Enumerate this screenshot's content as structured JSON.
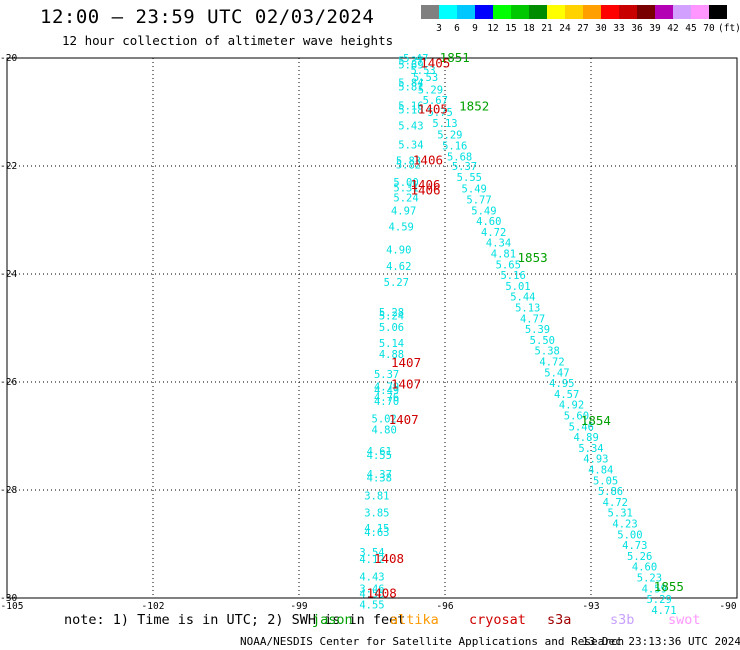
{
  "header": {
    "title": "12:00 — 23:59 UTC 02/03/2024",
    "subtitle": "12 hour collection of altimeter wave heights"
  },
  "colorbar": {
    "labels": [
      "3",
      "6",
      "9",
      "12",
      "15",
      "18",
      "21",
      "24",
      "27",
      "30",
      "33",
      "36",
      "39",
      "42",
      "45",
      "70"
    ],
    "colors": [
      "#808080",
      "#00ffff",
      "#00c8ff",
      "#0000ff",
      "#00ff00",
      "#00c800",
      "#008c00",
      "#ffff00",
      "#ffd200",
      "#ffa000",
      "#ff0000",
      "#c80000",
      "#780000",
      "#b400b4",
      "#d2a0ff",
      "#ff96ff",
      "#000000"
    ],
    "unit": "(ft)"
  },
  "footer": {
    "note": "note: 1) Time is in UTC; 2) SWH is in feet",
    "missions": [
      {
        "name": "jason",
        "color": "#00a000"
      },
      {
        "name": "altika",
        "color": "#ff9900"
      },
      {
        "name": "cryosat",
        "color": "#d00000"
      },
      {
        "name": "s3a",
        "color": "#a00000"
      },
      {
        "name": "s3b",
        "color": "#c8a0ff"
      },
      {
        "name": "swot",
        "color": "#ff96ff"
      }
    ],
    "credit": "NOAA/NESDIS Center for Satellite Applications and Research",
    "timestamp": "13 Dec 23:13:36 UTC 2024"
  },
  "chart_data": {
    "type": "scatter",
    "title": "12:00 — 23:59 UTC 02/03/2024",
    "subtitle": "12 hour collection of altimeter wave heights",
    "xlim": [
      -105,
      -90
    ],
    "ylim": [
      -30,
      -20
    ],
    "x_ticks": [
      "-105",
      "-102",
      "-99",
      "-96",
      "-93",
      "-90"
    ],
    "y_ticks": [
      "-20",
      "-22",
      "-24",
      "-26",
      "-28",
      "-30"
    ],
    "x_tick_values": [
      -105,
      -102,
      -99,
      -96,
      -93,
      -90
    ],
    "y_tick_values": [
      -20,
      -22,
      -24,
      -26,
      -28,
      -30
    ],
    "grid": "dotted",
    "value_color": "#00e0e0",
    "time_color_jason": "#00a000",
    "time_color_cryosat": "#d00000",
    "series": [
      {
        "name": "jason",
        "points": [
          {
            "lon": -96.6,
            "lat": -20.0,
            "v": "5.47"
          },
          {
            "lon": -96.45,
            "lat": -20.22,
            "v": "5.53"
          },
          {
            "lon": -96.4,
            "lat": -20.35,
            "v": "5.53"
          },
          {
            "lon": -96.3,
            "lat": -20.58,
            "v": "5.29"
          },
          {
            "lon": -96.2,
            "lat": -20.78,
            "v": "5.67"
          },
          {
            "lon": -96.1,
            "lat": -21.0,
            "v": "5.75"
          },
          {
            "lon": -96.0,
            "lat": -21.2,
            "v": "5.13"
          },
          {
            "lon": -95.9,
            "lat": -21.42,
            "v": "5.29"
          },
          {
            "lon": -95.8,
            "lat": -21.62,
            "v": "5.16"
          },
          {
            "lon": -95.7,
            "lat": -21.82,
            "v": "5.68"
          },
          {
            "lon": -95.6,
            "lat": -22.0,
            "v": "5.37"
          },
          {
            "lon": -95.5,
            "lat": -22.2,
            "v": "5.55"
          },
          {
            "lon": -95.4,
            "lat": -22.42,
            "v": "5.49"
          },
          {
            "lon": -95.3,
            "lat": -22.62,
            "v": "5.77"
          },
          {
            "lon": -95.2,
            "lat": -22.82,
            "v": "5.49"
          },
          {
            "lon": -95.1,
            "lat": -23.02,
            "v": "4.60"
          },
          {
            "lon": -95.0,
            "lat": -23.22,
            "v": "4.72"
          },
          {
            "lon": -94.9,
            "lat": -23.42,
            "v": "4.34"
          },
          {
            "lon": -94.8,
            "lat": -23.62,
            "v": "4.81"
          },
          {
            "lon": -94.7,
            "lat": -23.82,
            "v": "5.65"
          },
          {
            "lon": -94.6,
            "lat": -24.02,
            "v": "5.16"
          },
          {
            "lon": -94.5,
            "lat": -24.22,
            "v": "5.01"
          },
          {
            "lon": -94.4,
            "lat": -24.42,
            "v": "5.44"
          },
          {
            "lon": -94.3,
            "lat": -24.62,
            "v": "5.13"
          },
          {
            "lon": -94.2,
            "lat": -24.82,
            "v": "4.77"
          },
          {
            "lon": -94.1,
            "lat": -25.02,
            "v": "5.39"
          },
          {
            "lon": -94.0,
            "lat": -25.22,
            "v": "5.50"
          },
          {
            "lon": -93.9,
            "lat": -25.42,
            "v": "5.38"
          },
          {
            "lon": -93.8,
            "lat": -25.62,
            "v": "4.72"
          },
          {
            "lon": -93.7,
            "lat": -25.82,
            "v": "5.47"
          },
          {
            "lon": -93.6,
            "lat": -26.02,
            "v": "4.95"
          },
          {
            "lon": -93.5,
            "lat": -26.22,
            "v": "4.57"
          },
          {
            "lon": -93.4,
            "lat": -26.42,
            "v": "4.92"
          },
          {
            "lon": -93.3,
            "lat": -26.62,
            "v": "5.60"
          },
          {
            "lon": -93.2,
            "lat": -26.82,
            "v": "5.46"
          },
          {
            "lon": -93.1,
            "lat": -27.02,
            "v": "4.89"
          },
          {
            "lon": -93.0,
            "lat": -27.22,
            "v": "5.34"
          },
          {
            "lon": -92.9,
            "lat": -27.42,
            "v": "4.93"
          },
          {
            "lon": -92.8,
            "lat": -27.62,
            "v": "4.84"
          },
          {
            "lon": -92.7,
            "lat": -27.82,
            "v": "5.05"
          },
          {
            "lon": -92.6,
            "lat": -28.02,
            "v": "5.86"
          },
          {
            "lon": -92.5,
            "lat": -28.22,
            "v": "4.72"
          },
          {
            "lon": -92.4,
            "lat": -28.42,
            "v": "5.31"
          },
          {
            "lon": -92.3,
            "lat": -28.62,
            "v": "4.23"
          },
          {
            "lon": -92.2,
            "lat": -28.82,
            "v": "5.00"
          },
          {
            "lon": -92.1,
            "lat": -29.02,
            "v": "4.73"
          },
          {
            "lon": -92.0,
            "lat": -29.22,
            "v": "5.26"
          },
          {
            "lon": -91.9,
            "lat": -29.42,
            "v": "4.60"
          },
          {
            "lon": -91.8,
            "lat": -29.62,
            "v": "5.23"
          },
          {
            "lon": -91.7,
            "lat": -29.82,
            "v": "4.59"
          },
          {
            "lon": -91.6,
            "lat": -30.02,
            "v": "5.29"
          },
          {
            "lon": -91.5,
            "lat": -30.22,
            "v": "4.71"
          }
        ],
        "times": [
          {
            "lon": -95.8,
            "lat": -20.0,
            "t": "1851"
          },
          {
            "lon": -95.4,
            "lat": -20.9,
            "t": "1852"
          },
          {
            "lon": -94.2,
            "lat": -23.7,
            "t": "1853"
          },
          {
            "lon": -92.9,
            "lat": -26.72,
            "t": "1854"
          },
          {
            "lon": -91.4,
            "lat": -29.8,
            "t": "1855"
          }
        ]
      },
      {
        "name": "cryosat",
        "points": [
          {
            "lon": -96.7,
            "lat": -20.05,
            "v": "5.37"
          },
          {
            "lon": -96.7,
            "lat": -20.12,
            "v": "5.69"
          },
          {
            "lon": -96.7,
            "lat": -20.45,
            "v": "5.84"
          },
          {
            "lon": -96.7,
            "lat": -20.53,
            "v": "5.81"
          },
          {
            "lon": -96.7,
            "lat": -20.88,
            "v": "5.16"
          },
          {
            "lon": -96.7,
            "lat": -20.95,
            "v": "5.18"
          },
          {
            "lon": -96.7,
            "lat": -21.25,
            "v": "5.43"
          },
          {
            "lon": -96.7,
            "lat": -21.6,
            "v": "5.34"
          },
          {
            "lon": -96.75,
            "lat": -21.9,
            "v": "5.83"
          },
          {
            "lon": -96.75,
            "lat": -21.97,
            "v": "5.82"
          },
          {
            "lon": -96.8,
            "lat": -22.3,
            "v": "5.00"
          },
          {
            "lon": -96.8,
            "lat": -22.4,
            "v": "5.31"
          },
          {
            "lon": -96.8,
            "lat": -22.58,
            "v": "5.24"
          },
          {
            "lon": -96.85,
            "lat": -22.82,
            "v": "4.97"
          },
          {
            "lon": -96.9,
            "lat": -23.12,
            "v": "4.59"
          },
          {
            "lon": -96.95,
            "lat": -23.55,
            "v": "4.90"
          },
          {
            "lon": -96.95,
            "lat": -23.85,
            "v": "4.62"
          },
          {
            "lon": -97.0,
            "lat": -24.15,
            "v": "5.27"
          },
          {
            "lon": -97.1,
            "lat": -24.7,
            "v": "5.28"
          },
          {
            "lon": -97.1,
            "lat": -24.77,
            "v": "5.24"
          },
          {
            "lon": -97.1,
            "lat": -24.98,
            "v": "5.06"
          },
          {
            "lon": -97.1,
            "lat": -25.28,
            "v": "5.14"
          },
          {
            "lon": -97.1,
            "lat": -25.48,
            "v": "4.88"
          },
          {
            "lon": -97.2,
            "lat": -25.85,
            "v": "5.37"
          },
          {
            "lon": -97.2,
            "lat": -26.08,
            "v": "4.79"
          },
          {
            "lon": -97.2,
            "lat": -26.15,
            "v": "4.49"
          },
          {
            "lon": -97.2,
            "lat": -26.28,
            "v": "4.76"
          },
          {
            "lon": -97.2,
            "lat": -26.35,
            "v": "4.70"
          },
          {
            "lon": -97.25,
            "lat": -26.68,
            "v": "5.02"
          },
          {
            "lon": -97.25,
            "lat": -26.88,
            "v": "4.80"
          },
          {
            "lon": -97.35,
            "lat": -27.28,
            "v": "4.61"
          },
          {
            "lon": -97.35,
            "lat": -27.35,
            "v": "4.55"
          },
          {
            "lon": -97.35,
            "lat": -27.7,
            "v": "4.37"
          },
          {
            "lon": -97.35,
            "lat": -27.77,
            "v": "4.38"
          },
          {
            "lon": -97.4,
            "lat": -28.1,
            "v": "3.81"
          },
          {
            "lon": -97.4,
            "lat": -28.42,
            "v": "3.85"
          },
          {
            "lon": -97.4,
            "lat": -28.7,
            "v": "4.15"
          },
          {
            "lon": -97.4,
            "lat": -28.78,
            "v": "4.63"
          },
          {
            "lon": -97.5,
            "lat": -29.15,
            "v": "3.54"
          },
          {
            "lon": -97.5,
            "lat": -29.28,
            "v": "4.12"
          },
          {
            "lon": -97.5,
            "lat": -29.6,
            "v": "4.43"
          },
          {
            "lon": -97.5,
            "lat": -29.82,
            "v": "3.46"
          },
          {
            "lon": -97.5,
            "lat": -29.92,
            "v": "4.55"
          },
          {
            "lon": -97.5,
            "lat": -30.12,
            "v": "4.55"
          }
        ],
        "times": [
          {
            "lon": -96.2,
            "lat": -20.1,
            "t": "1405"
          },
          {
            "lon": -96.25,
            "lat": -20.95,
            "t": "1405"
          },
          {
            "lon": -96.35,
            "lat": -21.9,
            "t": "1406"
          },
          {
            "lon": -96.4,
            "lat": -22.35,
            "t": "1406"
          },
          {
            "lon": -96.4,
            "lat": -22.45,
            "t": "1406"
          },
          {
            "lon": -96.8,
            "lat": -25.65,
            "t": "1407"
          },
          {
            "lon": -96.8,
            "lat": -26.05,
            "t": "1407"
          },
          {
            "lon": -96.85,
            "lat": -26.7,
            "t": "1407"
          },
          {
            "lon": -97.15,
            "lat": -29.28,
            "t": "1408"
          },
          {
            "lon": -97.3,
            "lat": -29.92,
            "t": "1408"
          }
        ]
      }
    ]
  }
}
